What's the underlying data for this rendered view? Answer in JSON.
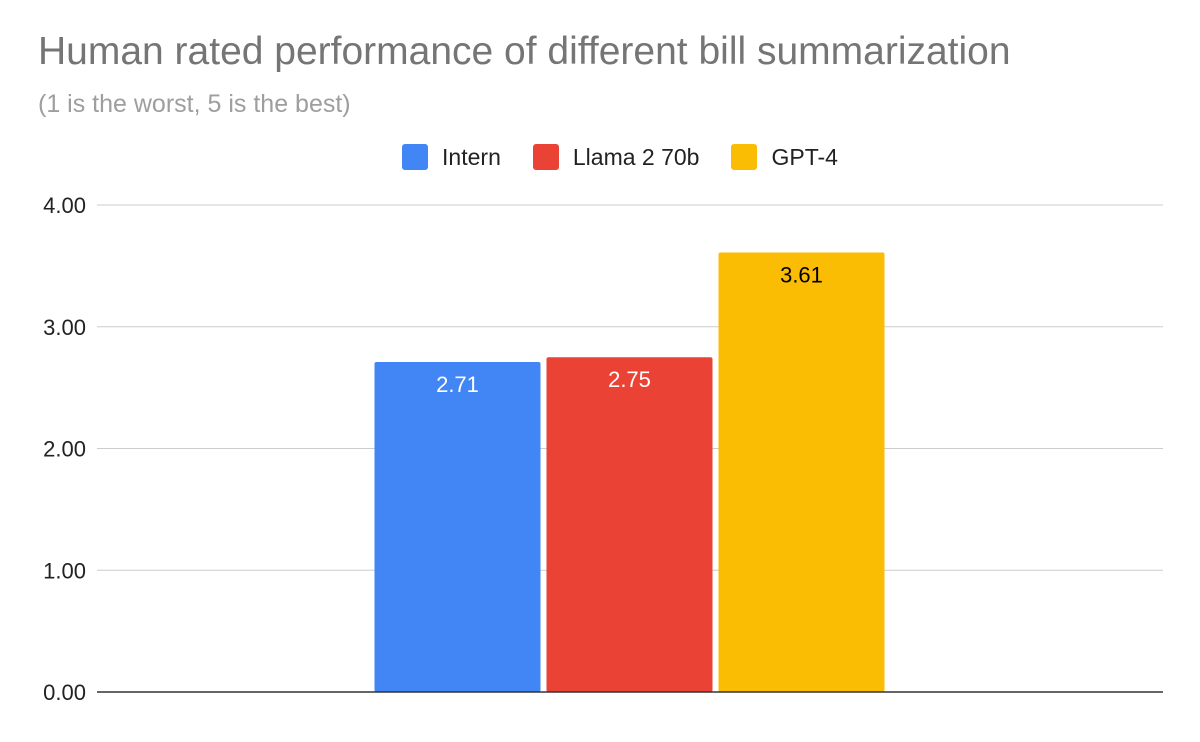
{
  "chart_data": {
    "type": "bar",
    "title": "Human rated performance of different bill summarization",
    "subtitle": "(1 is the worst, 5 is the best)",
    "categories": [
      ""
    ],
    "series": [
      {
        "name": "Intern",
        "values": [
          2.71
        ],
        "color": "#4285f4",
        "label_color": "#ffffff"
      },
      {
        "name": "Llama 2 70b",
        "values": [
          2.75
        ],
        "color": "#ea4335",
        "label_color": "#ffffff"
      },
      {
        "name": "GPT-4",
        "values": [
          3.61
        ],
        "color": "#fbbc04",
        "label_color": "#000000"
      }
    ],
    "data_labels": [
      "2.71",
      "2.75",
      "3.61"
    ],
    "ylim": [
      0,
      4
    ],
    "yticks": [
      "0.00",
      "1.00",
      "2.00",
      "3.00",
      "4.00"
    ],
    "grid": true,
    "legend": "top-center",
    "xlabel": "",
    "ylabel": ""
  }
}
